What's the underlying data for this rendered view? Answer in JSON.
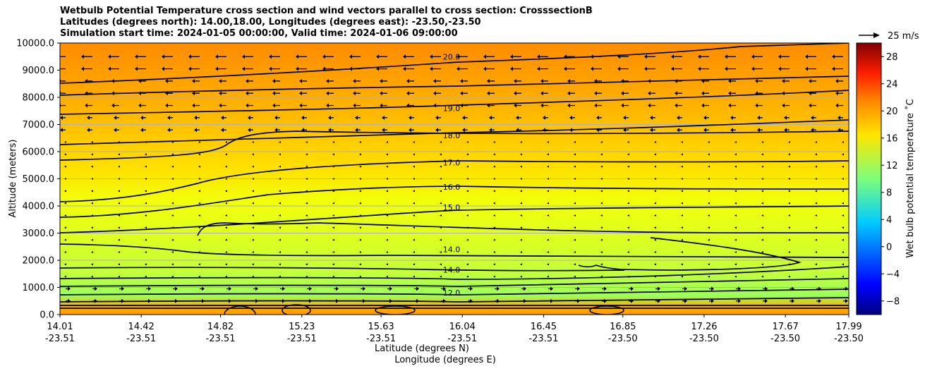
{
  "chart_data": {
    "type": "heatmap",
    "title_lines": [
      "Wetbulb Potential Temperature cross section and wind vectors parallel to cross section: CrosssectionB",
      "Latitudes (degrees north): 14.00,18.00, Longitudes (degrees east): -23.50,-23.50",
      "Simulation start time: 2024-01-05 00:00:00, Valid time: 2024-01-06 09:00:00"
    ],
    "xlabel_lat": "Latitude (degrees N)",
    "xlabel_lon": "Longitude (degrees E)",
    "ylabel": "Altitude (meters)",
    "xlim": [
      14.01,
      17.99
    ],
    "ylim": [
      0,
      10000
    ],
    "x_ticks": [
      {
        "lat": "14.01",
        "lon": "-23.51",
        "value": 14.01
      },
      {
        "lat": "14.42",
        "lon": "-23.51",
        "value": 14.42
      },
      {
        "lat": "14.82",
        "lon": "-23.51",
        "value": 14.82
      },
      {
        "lat": "15.23",
        "lon": "-23.51",
        "value": 15.23
      },
      {
        "lat": "15.63",
        "lon": "-23.51",
        "value": 15.63
      },
      {
        "lat": "16.04",
        "lon": "-23.51",
        "value": 16.04
      },
      {
        "lat": "16.45",
        "lon": "-23.51",
        "value": 16.45
      },
      {
        "lat": "16.85",
        "lon": "-23.50",
        "value": 16.85
      },
      {
        "lat": "17.26",
        "lon": "-23.50",
        "value": 17.26
      },
      {
        "lat": "17.67",
        "lon": "-23.50",
        "value": 17.67
      },
      {
        "lat": "17.99",
        "lon": "-23.50",
        "value": 17.99
      }
    ],
    "y_ticks": [
      "0.0",
      "1000.0",
      "2000.0",
      "3000.0",
      "4000.0",
      "5000.0",
      "6000.0",
      "7000.0",
      "8000.0",
      "9000.0",
      "10000.0"
    ],
    "y_tick_values": [
      0,
      1000,
      2000,
      3000,
      4000,
      5000,
      6000,
      7000,
      8000,
      9000,
      10000
    ],
    "colorbar": {
      "label": "Wet bulb potential temperature ˚C",
      "range": [
        -10,
        30
      ],
      "ticks": [
        "−8",
        "−4",
        "0",
        "4",
        "8",
        "12",
        "16",
        "20",
        "24",
        "28"
      ],
      "tick_values": [
        -8,
        -4,
        0,
        4,
        8,
        12,
        16,
        20,
        24,
        28
      ]
    },
    "quiver_key": "25 m/s",
    "grid": true,
    "contours": [
      {
        "label": "20.0",
        "altitude": 9500
      },
      {
        "label": "19.0",
        "altitude": 7600
      },
      {
        "label": "18.0",
        "altitude": 6600
      },
      {
        "label": "17.0",
        "altitude": 5600
      },
      {
        "label": "16.0",
        "altitude": 4700
      },
      {
        "label": "15.0",
        "altitude": 3950
      },
      {
        "label": "14.0",
        "altitude": 2400
      },
      {
        "label": "14.0",
        "altitude": 1650
      },
      {
        "label": "12.0",
        "altitude": 800
      }
    ]
  }
}
